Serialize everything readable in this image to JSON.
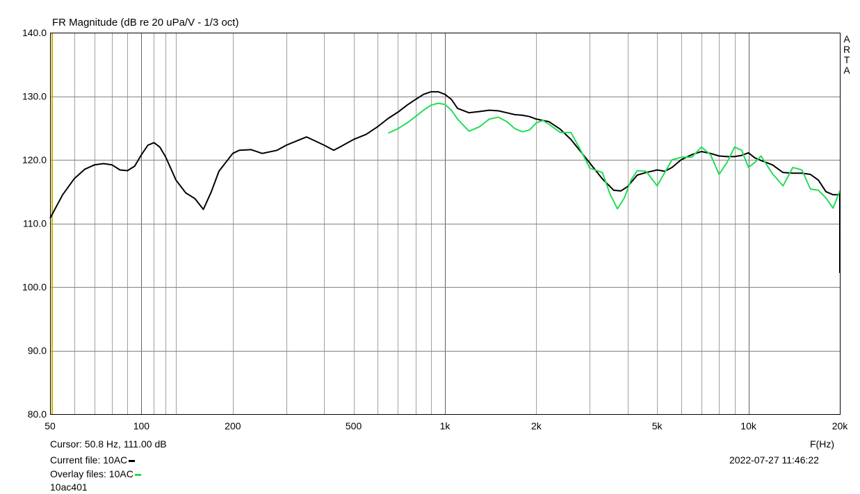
{
  "chart_data": {
    "type": "line",
    "title": "FR Magnitude (dB re 20 uPa/V - 1/3 oct)",
    "xlabel": "F(Hz)",
    "ylabel": "",
    "x_scale": "log",
    "xlim": [
      50,
      20000
    ],
    "ylim": [
      80,
      140
    ],
    "grid": true,
    "x_tick_labels": [
      "50",
      "100",
      "200",
      "500",
      "1k",
      "2k",
      "5k",
      "10k",
      "20k"
    ],
    "x_tick_values": [
      50,
      100,
      200,
      500,
      1000,
      2000,
      5000,
      10000,
      20000
    ],
    "y_tick_labels": [
      "140.0",
      "130.0",
      "120.0",
      "110.0",
      "100.0",
      "90.0",
      "80.0"
    ],
    "y_tick_values": [
      140,
      130,
      120,
      110,
      100,
      90,
      80
    ],
    "cursor_x": 50.8,
    "series": [
      {
        "name": "10AC",
        "color": "#000000",
        "x": [
          50,
          55,
          60,
          65,
          70,
          75,
          80,
          85,
          90,
          95,
          100,
          105,
          110,
          115,
          120,
          130,
          140,
          150,
          160,
          170,
          180,
          200,
          210,
          230,
          250,
          280,
          300,
          330,
          350,
          380,
          400,
          430,
          450,
          500,
          550,
          600,
          650,
          700,
          750,
          800,
          850,
          900,
          950,
          1000,
          1050,
          1100,
          1200,
          1300,
          1400,
          1500,
          1600,
          1700,
          1800,
          1900,
          2000,
          2200,
          2400,
          2600,
          2800,
          3000,
          3300,
          3600,
          3800,
          4000,
          4300,
          4600,
          5000,
          5300,
          5600,
          6000,
          6500,
          7000,
          7500,
          8000,
          8500,
          9000,
          9500,
          10000,
          10500,
          11000,
          12000,
          13000,
          14000,
          15000,
          16000,
          17000,
          18000,
          19000,
          19800,
          20000
        ],
        "y": [
          110.8,
          114.5,
          117.0,
          118.5,
          119.2,
          119.4,
          119.2,
          118.4,
          118.3,
          119.0,
          120.8,
          122.3,
          122.7,
          122.0,
          120.5,
          116.8,
          114.8,
          113.9,
          112.2,
          115.0,
          118.2,
          121.0,
          121.5,
          121.6,
          121.0,
          121.5,
          122.3,
          123.1,
          123.6,
          122.8,
          122.3,
          121.5,
          122.0,
          123.2,
          124.0,
          125.2,
          126.5,
          127.5,
          128.6,
          129.5,
          130.3,
          130.7,
          130.7,
          130.3,
          129.5,
          128.1,
          127.4,
          127.6,
          127.8,
          127.7,
          127.4,
          127.1,
          127.0,
          126.8,
          126.4,
          126.0,
          124.8,
          123.2,
          121.3,
          119.5,
          117.0,
          115.2,
          115.1,
          115.8,
          117.6,
          118.0,
          118.4,
          118.2,
          118.8,
          120.0,
          120.8,
          121.3,
          121.0,
          120.6,
          120.5,
          120.5,
          120.7,
          121.1,
          120.3,
          119.9,
          119.2,
          118.0,
          117.9,
          117.9,
          117.7,
          116.8,
          115.0,
          114.5,
          114.5,
          114.8
        ],
        "tail_drop_y": 102.2
      },
      {
        "name": "10AC",
        "color": "#22dd55",
        "x": [
          650,
          700,
          750,
          800,
          850,
          900,
          950,
          1000,
          1050,
          1100,
          1200,
          1300,
          1400,
          1500,
          1600,
          1700,
          1800,
          1900,
          2000,
          2100,
          2200,
          2400,
          2600,
          2800,
          3000,
          3300,
          3500,
          3700,
          3900,
          4100,
          4300,
          4600,
          5000,
          5300,
          5600,
          6000,
          6500,
          7000,
          7500,
          8000,
          8500,
          9000,
          9500,
          10000,
          10500,
          11000,
          12000,
          13000,
          14000,
          15000,
          16000,
          17000,
          18000,
          19000,
          20000
        ],
        "y": [
          124.2,
          124.9,
          125.8,
          126.8,
          127.8,
          128.6,
          128.9,
          128.7,
          127.8,
          126.4,
          124.5,
          125.2,
          126.4,
          126.7,
          126.0,
          124.9,
          124.4,
          124.7,
          125.8,
          126.2,
          125.6,
          124.3,
          124.3,
          121.5,
          118.7,
          118.0,
          114.6,
          112.3,
          114.0,
          116.8,
          118.3,
          118.2,
          115.9,
          118.0,
          120.0,
          120.4,
          120.4,
          122.0,
          120.8,
          117.7,
          119.6,
          122.0,
          121.5,
          118.8,
          119.6,
          120.6,
          117.8,
          115.9,
          118.8,
          118.4,
          115.4,
          115.2,
          114.0,
          112.4,
          115.1
        ]
      }
    ]
  },
  "footer": {
    "cursor_label": "Cursor: 50.8 Hz, 111.00 dB",
    "current_file_label": "Current file: 10AC",
    "overlay_files_label": "Overlay files: 10AC",
    "filename": "10ac401",
    "axis_unit": "F(Hz)",
    "timestamp": "2022-07-27   11:46:22"
  },
  "watermark": "ARTA",
  "colors": {
    "current": "#000000",
    "overlay": "#22dd55",
    "cursor": "#c8b400",
    "grid": "#a0a0a0"
  }
}
